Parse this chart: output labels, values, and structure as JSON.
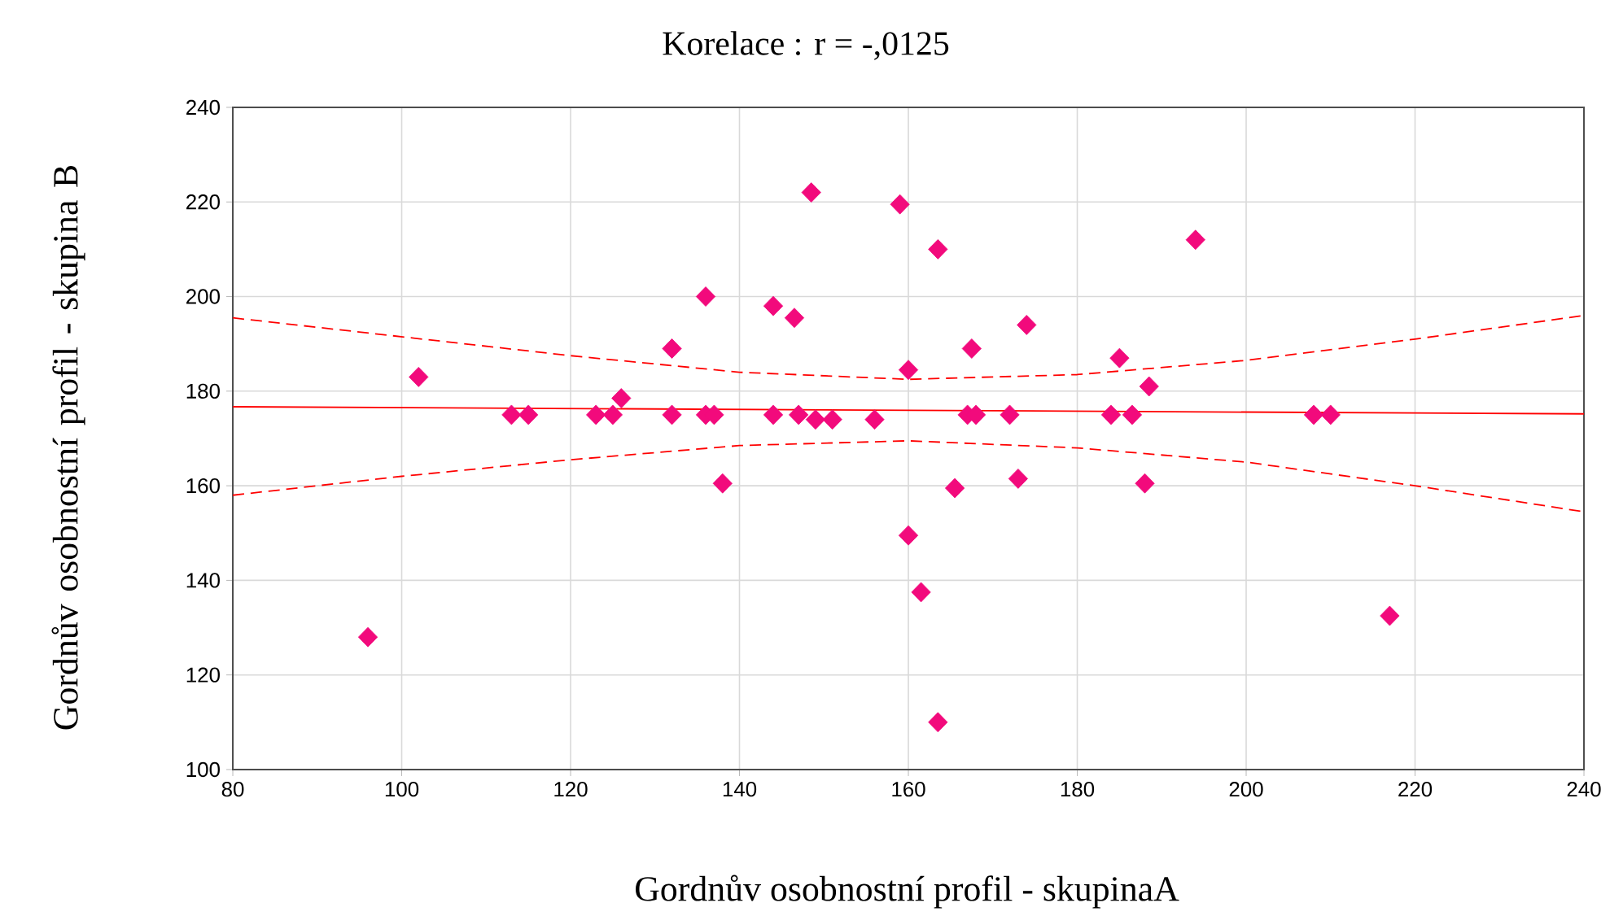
{
  "chart_data": {
    "type": "scatter",
    "title": "Korelace :   r = -,0125",
    "xlabel": "Gordnův osobnostní profil - skupinaA",
    "ylabel": "Gordnův osobnostní profil - skupina B",
    "xlim": [
      80,
      240
    ],
    "ylim": [
      100,
      240
    ],
    "xticks": [
      80,
      100,
      120,
      140,
      160,
      180,
      200,
      220,
      240
    ],
    "yticks": [
      100,
      120,
      140,
      160,
      180,
      200,
      220,
      240
    ],
    "grid": true,
    "series": [
      {
        "marker": "diamond",
        "color": "#f20a7c",
        "x": [
          96,
          102,
          113,
          115,
          123,
          125,
          126,
          132,
          132,
          136,
          136,
          137,
          138,
          144,
          144,
          146.5,
          147,
          148.5,
          149,
          151,
          156,
          159,
          160,
          160,
          161.5,
          163.5,
          163.5,
          165.5,
          167,
          167.5,
          168,
          172,
          173,
          174,
          184,
          185,
          186.5,
          188,
          188.5,
          194,
          208,
          210,
          217
        ],
        "values": [
          128,
          183,
          175,
          175,
          175,
          175,
          178.5,
          189,
          175,
          200,
          175,
          175,
          160.5,
          198,
          175,
          195.5,
          175,
          222,
          174,
          174,
          174,
          219.5,
          184.5,
          149.5,
          137.5,
          210,
          110,
          159.5,
          175,
          189,
          175,
          175,
          161.5,
          194,
          175,
          187,
          175,
          160.5,
          181,
          212,
          175,
          175,
          132.5
        ]
      },
      {
        "type": "line",
        "marker": "none",
        "line_style": "solid",
        "color": "#ff0000",
        "x": [
          80,
          240
        ],
        "values": [
          176.7,
          175.2
        ]
      },
      {
        "type": "line",
        "marker": "none",
        "line_style": "dashed",
        "color": "#ff0000",
        "x": [
          80,
          100,
          120,
          140,
          160,
          180,
          200,
          220,
          240
        ],
        "values": [
          195.5,
          191.5,
          187.5,
          184,
          182.5,
          183.5,
          186.5,
          191,
          196
        ]
      },
      {
        "type": "line",
        "marker": "none",
        "line_style": "dashed",
        "color": "#ff0000",
        "x": [
          80,
          100,
          120,
          140,
          160,
          180,
          200,
          220,
          240
        ],
        "values": [
          158,
          162,
          165.5,
          168.5,
          169.5,
          168,
          165,
          160,
          154.5
        ]
      }
    ]
  }
}
